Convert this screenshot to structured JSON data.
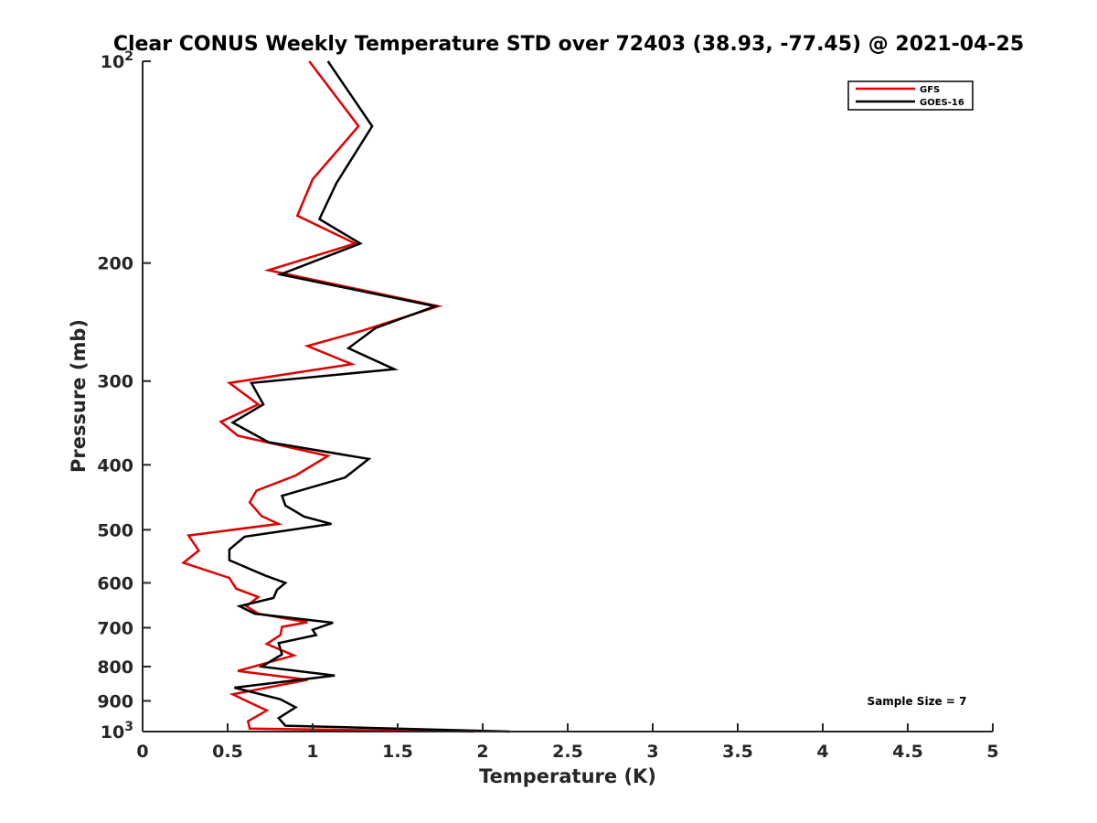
{
  "chart_data": {
    "type": "line",
    "title": "Clear CONUS Weekly Temperature STD over 72403 (38.93, -77.45) @ 2021-04-25",
    "xlabel": "Temperature (K)",
    "ylabel": "Pressure (mb)",
    "xlim": [
      0,
      5
    ],
    "ylim": [
      100,
      1000
    ],
    "y_scale": "log",
    "y_reversed": true,
    "x_ticks": [
      0,
      0.5,
      1,
      1.5,
      2,
      2.5,
      3,
      3.5,
      4,
      4.5,
      5
    ],
    "x_tick_labels": [
      "0",
      "0.5",
      "1",
      "1.5",
      "2",
      "2.5",
      "3",
      "3.5",
      "4",
      "4.5",
      "5"
    ],
    "y_ticks": [
      100,
      200,
      300,
      400,
      500,
      600,
      700,
      800,
      900,
      1000
    ],
    "y_tick_labels": [
      "10^2",
      "200",
      "300",
      "400",
      "500",
      "600",
      "700",
      "800",
      "900",
      "10^3"
    ],
    "grid": false,
    "legend_position": "top-right",
    "annotation": "Sample Size = 7",
    "series": [
      {
        "name": "GFS",
        "color": "#e00000",
        "points": [
          [
            0.98,
            100
          ],
          [
            1.27,
            125
          ],
          [
            1.0,
            150
          ],
          [
            0.91,
            170
          ],
          [
            1.25,
            187
          ],
          [
            0.74,
            205
          ],
          [
            1.74,
            232
          ],
          [
            1.3,
            252
          ],
          [
            0.97,
            266
          ],
          [
            1.23,
            283
          ],
          [
            0.51,
            302
          ],
          [
            0.68,
            325
          ],
          [
            0.46,
            345
          ],
          [
            0.56,
            362
          ],
          [
            1.09,
            388
          ],
          [
            0.9,
            415
          ],
          [
            0.67,
            437
          ],
          [
            0.63,
            455
          ],
          [
            0.7,
            477
          ],
          [
            0.8,
            490
          ],
          [
            0.27,
            510
          ],
          [
            0.33,
            537
          ],
          [
            0.24,
            560
          ],
          [
            0.51,
            590
          ],
          [
            0.55,
            612
          ],
          [
            0.68,
            630
          ],
          [
            0.61,
            650
          ],
          [
            0.68,
            667
          ],
          [
            0.97,
            687
          ],
          [
            0.82,
            698
          ],
          [
            0.81,
            718
          ],
          [
            0.73,
            740
          ],
          [
            0.89,
            770
          ],
          [
            0.56,
            812
          ],
          [
            0.97,
            837
          ],
          [
            0.53,
            880
          ],
          [
            0.63,
            905
          ],
          [
            0.73,
            930
          ],
          [
            0.62,
            965
          ],
          [
            0.63,
            990
          ],
          [
            1.95,
            1000
          ]
        ]
      },
      {
        "name": "GOES-16",
        "color": "#000000",
        "points": [
          [
            1.09,
            100
          ],
          [
            1.35,
            125
          ],
          [
            1.14,
            152
          ],
          [
            1.04,
            172
          ],
          [
            1.28,
            187
          ],
          [
            0.81,
            208
          ],
          [
            1.72,
            232
          ],
          [
            1.37,
            250
          ],
          [
            1.21,
            268
          ],
          [
            1.48,
            288
          ],
          [
            0.64,
            302
          ],
          [
            0.71,
            325
          ],
          [
            0.53,
            346
          ],
          [
            0.74,
            370
          ],
          [
            1.33,
            392
          ],
          [
            1.19,
            418
          ],
          [
            0.82,
            445
          ],
          [
            0.84,
            460
          ],
          [
            0.95,
            478
          ],
          [
            1.11,
            490
          ],
          [
            0.6,
            512
          ],
          [
            0.51,
            535
          ],
          [
            0.51,
            555
          ],
          [
            0.72,
            585
          ],
          [
            0.84,
            600
          ],
          [
            0.79,
            615
          ],
          [
            0.77,
            632
          ],
          [
            0.57,
            650
          ],
          [
            0.66,
            667
          ],
          [
            1.12,
            688
          ],
          [
            1.0,
            705
          ],
          [
            1.02,
            718
          ],
          [
            0.8,
            738
          ],
          [
            0.82,
            767
          ],
          [
            0.7,
            800
          ],
          [
            1.13,
            825
          ],
          [
            0.54,
            860
          ],
          [
            0.81,
            895
          ],
          [
            0.9,
            920
          ],
          [
            0.8,
            955
          ],
          [
            0.84,
            980
          ],
          [
            2.16,
            1000
          ]
        ]
      }
    ]
  }
}
